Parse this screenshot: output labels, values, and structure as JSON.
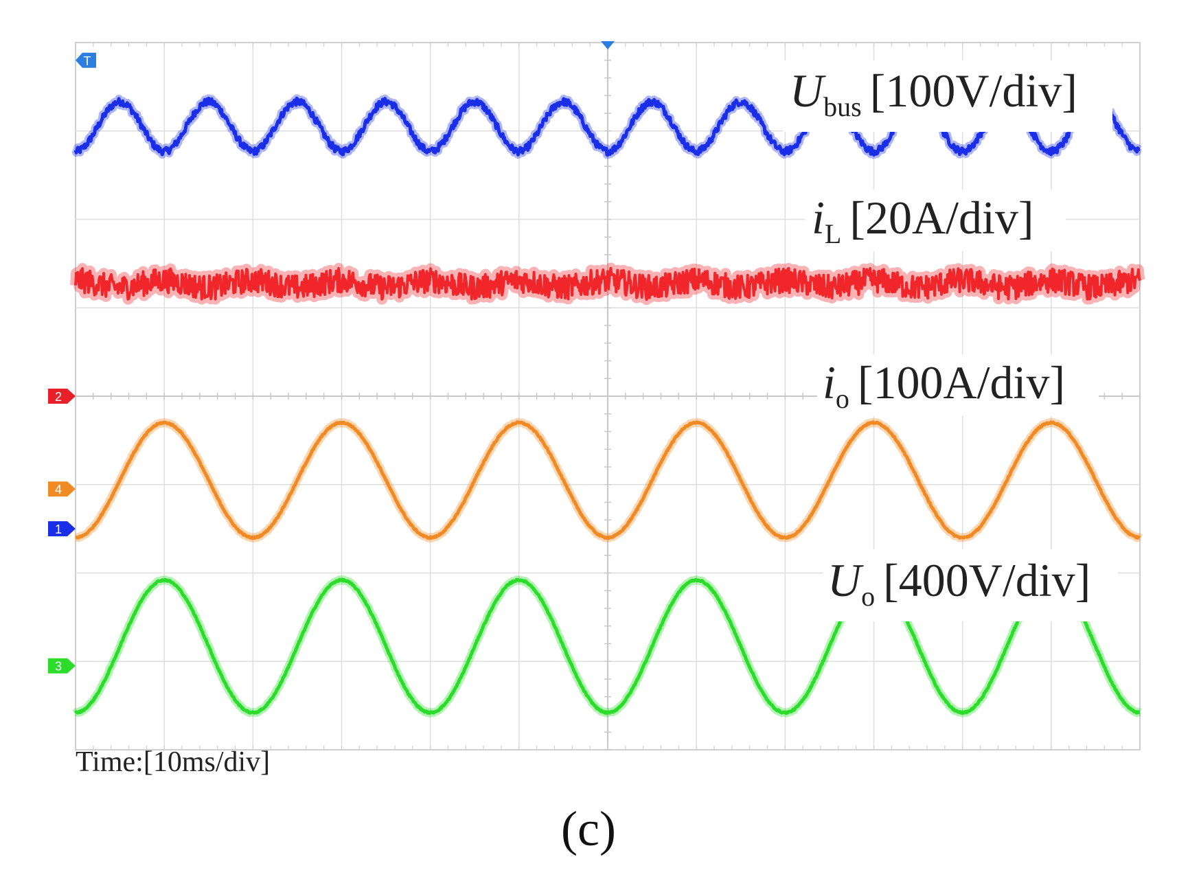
{
  "chart_data": {
    "type": "line",
    "title": "",
    "xlabel": "Time:[10ms/div]",
    "ylabel": "",
    "x_divisions": 12,
    "y_divisions": 8,
    "grid": true,
    "trigger_marker": "T",
    "series": [
      {
        "name": "Ubus",
        "symbol": "U",
        "subscript": "bus",
        "scale": "[100V/div]",
        "channel": "1",
        "color": "#1a2ee8",
        "shape": "sine",
        "period_div": 1.0,
        "phase_deg": 180,
        "center_div": 0.95,
        "amplitude_div": 0.28,
        "noise": 0.04
      },
      {
        "name": "iL",
        "symbol": "i",
        "subscript": "L",
        "scale": "[20A/div]",
        "channel": "2",
        "color": "#f0262a",
        "shape": "noise",
        "period_div": 1.0,
        "phase_deg": 0,
        "center_div": 2.73,
        "amplitude_div": 0.08,
        "noise": 0.14
      },
      {
        "name": "io",
        "symbol": "i",
        "subscript": "o",
        "scale": "[100A/div]",
        "channel": "4",
        "color": "#f08a24",
        "shape": "sine",
        "period_div": 2.0,
        "phase_deg": 180,
        "center_div": 4.95,
        "amplitude_div": 0.65,
        "noise": 0.008
      },
      {
        "name": "Uo",
        "symbol": "U",
        "subscript": "o",
        "scale": "[400V/div]",
        "channel": "3",
        "color": "#2bdc2b",
        "shape": "sine",
        "period_div": 2.0,
        "phase_deg": 180,
        "center_div": 6.83,
        "amplitude_div": 0.75,
        "noise": 0.008
      }
    ],
    "channel_markers": [
      {
        "label": "T",
        "color": "#2b7fe0",
        "level_div": 0.2
      },
      {
        "label": "2",
        "color": "#e8202a",
        "level_div": 4.0
      },
      {
        "label": "4",
        "color": "#f08a24",
        "level_div": 5.05
      },
      {
        "label": "1",
        "color": "#1a2ee8",
        "level_div": 5.5
      },
      {
        "label": "3",
        "color": "#2bdc2b",
        "level_div": 7.05
      }
    ]
  },
  "caption": "(c)"
}
